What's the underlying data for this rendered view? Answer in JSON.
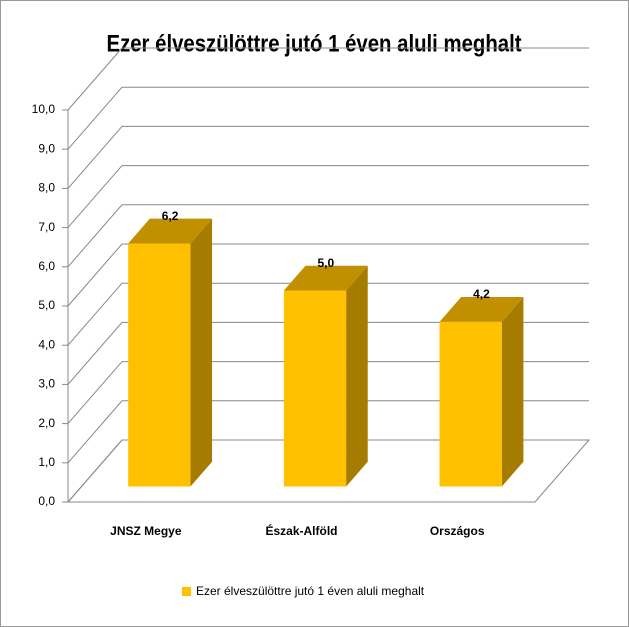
{
  "chart_data": {
    "type": "bar3d",
    "title": "Ezer élveszülöttre jutó 1 éven aluli meghalt",
    "categories": [
      "JNSZ Megye",
      "Észak-Alföld",
      "Országos"
    ],
    "series": [
      {
        "name": "Ezer élveszülöttre jutó 1 éven aluli meghalt",
        "color": "#FFC000",
        "values": [
          6.2,
          5.0,
          4.2
        ],
        "value_labels": [
          "6,2",
          "5,0",
          "4,2"
        ]
      }
    ],
    "ylim": [
      0,
      10
    ],
    "yticks": [
      {
        "value": 0,
        "label": "0,0"
      },
      {
        "value": 1,
        "label": "1,0"
      },
      {
        "value": 2,
        "label": "2,0"
      },
      {
        "value": 3,
        "label": "3,0"
      },
      {
        "value": 4,
        "label": "4,0"
      },
      {
        "value": 5,
        "label": "5,0"
      },
      {
        "value": 6,
        "label": "6,0"
      },
      {
        "value": 7,
        "label": "7,0"
      },
      {
        "value": 8,
        "label": "8,0"
      },
      {
        "value": 9,
        "label": "9,0"
      },
      {
        "value": 10,
        "label": "10,0"
      }
    ],
    "grid": true,
    "legend": "bottom"
  }
}
